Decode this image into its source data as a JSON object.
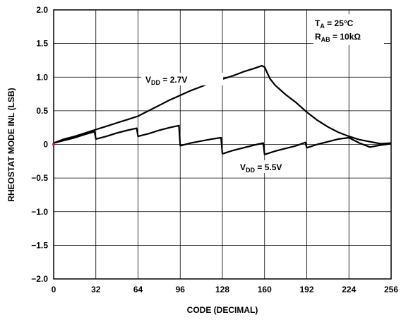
{
  "chart_data": {
    "type": "line",
    "xlabel": "CODE (DECIMAL)",
    "ylabel": "RHEOSTAT MODE INL (LSB)",
    "xlim": [
      0,
      256
    ],
    "ylim": [
      -2.0,
      2.0
    ],
    "xticks": [
      0,
      32,
      64,
      96,
      128,
      160,
      192,
      224,
      256
    ],
    "xtick_labels": [
      "0",
      "32",
      "64",
      "96",
      "128",
      "160",
      "192",
      "224",
      "256"
    ],
    "yticks": [
      -2.0,
      -1.5,
      -1.0,
      -0.5,
      0,
      0.5,
      1.0,
      1.5,
      2.0
    ],
    "ytick_labels": [
      "−2.0",
      "−1.5",
      "−1.0",
      "−0.5",
      "0",
      "0.5",
      "1.0",
      "1.5",
      "2.0"
    ],
    "grid": true,
    "conditions": {
      "ta": {
        "main": "T",
        "sub": "A",
        "rest": " = 25°C"
      },
      "rab": {
        "main": "R",
        "sub": "AB",
        "rest": " = 10kΩ"
      }
    },
    "series": [
      {
        "label_main": "V",
        "label_sub": "DD",
        "label_rest": " = 2.7V",
        "x": [
          0,
          8,
          16,
          24,
          32,
          40,
          48,
          56,
          64,
          72,
          80,
          88,
          96,
          104,
          112,
          120,
          128,
          136,
          144,
          152,
          158,
          160,
          164,
          168,
          176,
          184,
          192,
          200,
          208,
          216,
          224,
          232,
          240,
          248,
          256
        ],
        "y": [
          0.02,
          0.08,
          0.12,
          0.17,
          0.22,
          0.27,
          0.32,
          0.37,
          0.42,
          0.5,
          0.58,
          0.66,
          0.73,
          0.8,
          0.86,
          0.92,
          0.97,
          1.02,
          1.08,
          1.13,
          1.17,
          1.15,
          0.98,
          0.88,
          0.74,
          0.62,
          0.48,
          0.36,
          0.26,
          0.18,
          0.12,
          0.07,
          0.04,
          0.01,
          0.02
        ]
      },
      {
        "label_main": "V",
        "label_sub": "DD",
        "label_rest": " = 5.5V",
        "x": [
          0,
          8,
          16,
          24,
          31,
          32,
          40,
          48,
          56,
          63,
          64,
          72,
          80,
          88,
          95,
          96,
          104,
          112,
          120,
          127,
          128,
          136,
          144,
          152,
          159,
          160,
          168,
          176,
          184,
          191,
          192,
          200,
          208,
          216,
          224,
          232,
          240,
          248,
          256
        ],
        "y": [
          0.02,
          0.06,
          0.1,
          0.15,
          0.19,
          0.08,
          0.12,
          0.17,
          0.21,
          0.24,
          0.12,
          0.16,
          0.21,
          0.25,
          0.28,
          -0.02,
          0.02,
          0.05,
          0.08,
          0.1,
          -0.14,
          -0.09,
          -0.05,
          -0.01,
          0.02,
          -0.15,
          -0.1,
          -0.06,
          -0.02,
          0.03,
          -0.05,
          0.0,
          0.04,
          0.08,
          0.1,
          0.02,
          -0.04,
          -0.01,
          0.01
        ]
      }
    ]
  }
}
